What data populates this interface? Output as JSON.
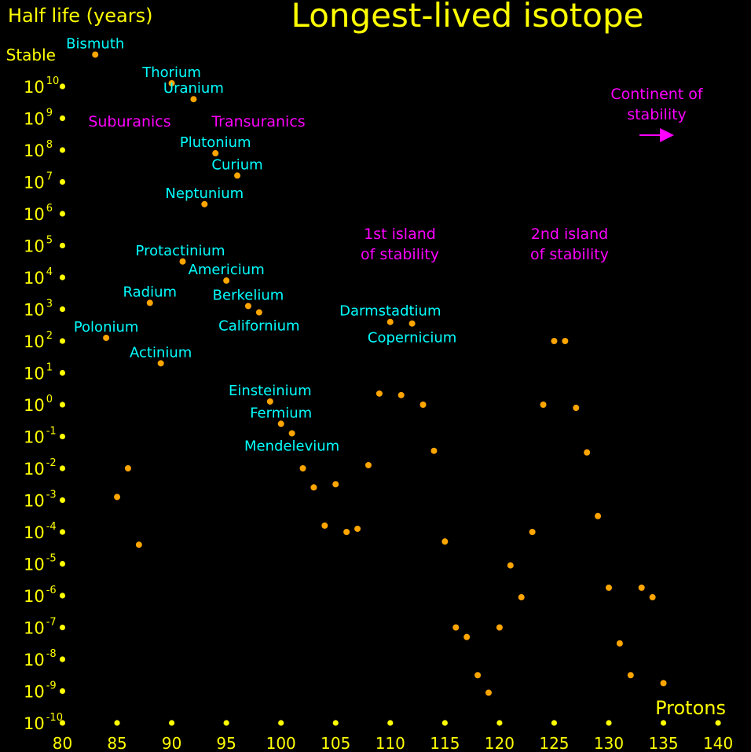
{
  "chart_data": {
    "type": "scatter",
    "title": "Longest-lived isotope",
    "ylabel": "Half life (years)",
    "xlabel": "Protons",
    "x_ticks": [
      80,
      85,
      90,
      95,
      100,
      105,
      110,
      115,
      120,
      125,
      130,
      135,
      140
    ],
    "y_scale": "log",
    "y_ticks": [
      {
        "base": "10",
        "exp": "-10"
      },
      {
        "base": "10",
        "exp": "-9"
      },
      {
        "base": "10",
        "exp": "-8"
      },
      {
        "base": "10",
        "exp": "-7"
      },
      {
        "base": "10",
        "exp": "-6"
      },
      {
        "base": "10",
        "exp": "-5"
      },
      {
        "base": "10",
        "exp": "-4"
      },
      {
        "base": "10",
        "exp": "-3"
      },
      {
        "base": "10",
        "exp": "-2"
      },
      {
        "base": "10",
        "exp": "-1"
      },
      {
        "base": "10",
        "exp": "0"
      },
      {
        "base": "10",
        "exp": "1"
      },
      {
        "base": "10",
        "exp": "2"
      },
      {
        "base": "10",
        "exp": "3"
      },
      {
        "base": "10",
        "exp": "4"
      },
      {
        "base": "10",
        "exp": "5"
      },
      {
        "base": "10",
        "exp": "6"
      },
      {
        "base": "10",
        "exp": "7"
      },
      {
        "base": "10",
        "exp": "8"
      },
      {
        "base": "10",
        "exp": "9"
      },
      {
        "base": "10",
        "exp": "10"
      }
    ],
    "stable_label": "Stable",
    "xlim": [
      80,
      140
    ],
    "ylim_log10": [
      -10,
      11
    ],
    "colors": {
      "text": "#ffff00",
      "ticks": "#ffff00",
      "points": "#ffa500",
      "element_labels": "#00ffff",
      "annotations": "#ff00ff",
      "background": "#000000"
    },
    "points": [
      {
        "x": 83,
        "log10_y": 11
      },
      {
        "x": 84,
        "log10_y": 2.1
      },
      {
        "x": 85,
        "log10_y": -2.9
      },
      {
        "x": 86,
        "log10_y": -2.0
      },
      {
        "x": 87,
        "log10_y": -4.4
      },
      {
        "x": 88,
        "log10_y": 3.2
      },
      {
        "x": 89,
        "log10_y": 1.3
      },
      {
        "x": 90,
        "log10_y": 10.1
      },
      {
        "x": 91,
        "log10_y": 4.5
      },
      {
        "x": 92,
        "log10_y": 9.6
      },
      {
        "x": 93,
        "log10_y": 6.3
      },
      {
        "x": 94,
        "log10_y": 7.9
      },
      {
        "x": 95,
        "log10_y": 3.9
      },
      {
        "x": 96,
        "log10_y": 7.2
      },
      {
        "x": 97,
        "log10_y": 3.1
      },
      {
        "x": 98,
        "log10_y": 2.9
      },
      {
        "x": 99,
        "log10_y": 0.1
      },
      {
        "x": 100,
        "log10_y": -0.6
      },
      {
        "x": 101,
        "log10_y": -0.9
      },
      {
        "x": 102,
        "log10_y": -2.0
      },
      {
        "x": 103,
        "log10_y": -2.6
      },
      {
        "x": 104,
        "log10_y": -3.8
      },
      {
        "x": 105,
        "log10_y": -2.5
      },
      {
        "x": 106,
        "log10_y": -4.0
      },
      {
        "x": 107,
        "log10_y": -3.9
      },
      {
        "x": 108,
        "log10_y": -1.9
      },
      {
        "x": 109,
        "log10_y": 0.35
      },
      {
        "x": 110,
        "log10_y": 2.6
      },
      {
        "x": 111,
        "log10_y": 0.3
      },
      {
        "x": 112,
        "log10_y": 2.55
      },
      {
        "x": 113,
        "log10_y": 0.0
      },
      {
        "x": 114,
        "log10_y": -1.45
      },
      {
        "x": 115,
        "log10_y": -4.3
      },
      {
        "x": 116,
        "log10_y": -7.0
      },
      {
        "x": 117,
        "log10_y": -7.3
      },
      {
        "x": 118,
        "log10_y": -8.5
      },
      {
        "x": 119,
        "log10_y": -9.05
      },
      {
        "x": 120,
        "log10_y": -7.0
      },
      {
        "x": 121,
        "log10_y": -5.05
      },
      {
        "x": 122,
        "log10_y": -6.05
      },
      {
        "x": 123,
        "log10_y": -4.0
      },
      {
        "x": 124,
        "log10_y": 0.0
      },
      {
        "x": 125,
        "log10_y": 2.0
      },
      {
        "x": 126,
        "log10_y": 2.0
      },
      {
        "x": 127,
        "log10_y": -0.1
      },
      {
        "x": 128,
        "log10_y": -1.5
      },
      {
        "x": 129,
        "log10_y": -3.5
      },
      {
        "x": 130,
        "log10_y": -5.75
      },
      {
        "x": 131,
        "log10_y": -7.5
      },
      {
        "x": 132,
        "log10_y": -8.5
      },
      {
        "x": 133,
        "log10_y": -5.75
      },
      {
        "x": 134,
        "log10_y": -6.05
      },
      {
        "x": 135,
        "log10_y": -8.75
      }
    ],
    "element_labels": [
      {
        "text": "Bismuth",
        "x": 83,
        "log10_y": 11
      },
      {
        "text": "Thorium",
        "x": 90,
        "log10_y": 10.1
      },
      {
        "text": "Uranium",
        "x": 92,
        "log10_y": 9.6
      },
      {
        "text": "Plutonium",
        "x": 94,
        "log10_y": 7.9
      },
      {
        "text": "Curium",
        "x": 96,
        "log10_y": 7.2
      },
      {
        "text": "Neptunium",
        "x": 93,
        "log10_y": 6.3
      },
      {
        "text": "Protactinium",
        "x": 91,
        "log10_y": 4.5
      },
      {
        "text": "Americium",
        "x": 95,
        "log10_y": 3.9
      },
      {
        "text": "Radium",
        "x": 88,
        "log10_y": 3.2
      },
      {
        "text": "Berkelium",
        "x": 97,
        "log10_y": 3.1
      },
      {
        "text": "Californium",
        "x": 98,
        "log10_y": 2.9
      },
      {
        "text": "Polonium",
        "x": 84,
        "log10_y": 2.1
      },
      {
        "text": "Actinium",
        "x": 89,
        "log10_y": 1.3
      },
      {
        "text": "Darmstadtium",
        "x": 110,
        "log10_y": 2.6
      },
      {
        "text": "Copernicium",
        "x": 112,
        "log10_y": 2.55
      },
      {
        "text": "Einsteinium",
        "x": 99,
        "log10_y": 0.1
      },
      {
        "text": "Fermium",
        "x": 100,
        "log10_y": -0.6
      },
      {
        "text": "Mendelevium",
        "x": 101,
        "log10_y": -0.9
      }
    ],
    "annotations": {
      "suburanics": "Suburanics",
      "transuranics": "Transuranics",
      "island1_line1": "1st island",
      "island1_line2": "of stability",
      "island2_line1": "2nd island",
      "island2_line2": "of stability",
      "continent_line1": "Continent of",
      "continent_line2": "stability"
    }
  }
}
